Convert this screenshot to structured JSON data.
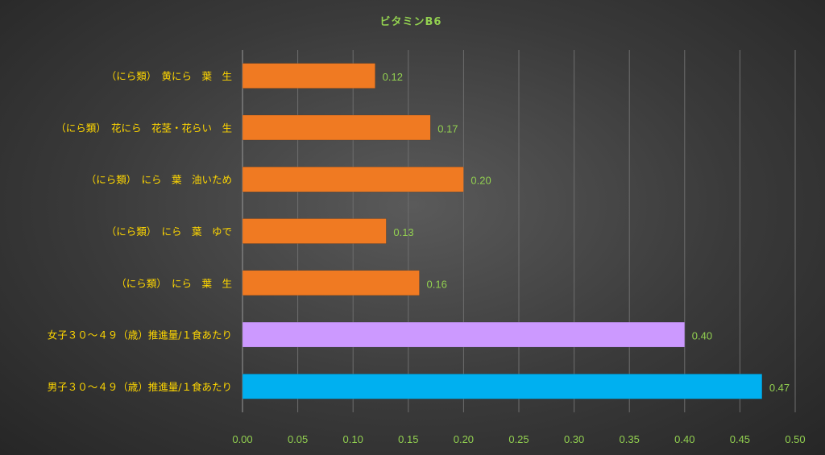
{
  "chart_data": {
    "type": "bar",
    "orientation": "horizontal",
    "title": "ビタミンB6",
    "categories": [
      "（にら類）　黄にら　葉　生",
      "（にら類）　花にら　花茎・花らい　生",
      "（にら類）　にら　葉　油いため",
      "（にら類）　にら　葉　ゆで",
      "（にら類）　にら　葉　生",
      "女子３０～４９（歳）推進量/１食あたり",
      "男子３０～４９（歳）推進量/１食あたり"
    ],
    "values": [
      0.12,
      0.17,
      0.2,
      0.13,
      0.16,
      0.4,
      0.47
    ],
    "data_labels": [
      "0.12",
      "0.17",
      "0.20",
      "0.13",
      "0.16",
      "0.40",
      "0.47"
    ],
    "bar_colors": [
      "#f07a22",
      "#f07a22",
      "#f07a22",
      "#f07a22",
      "#f07a22",
      "#cc99ff",
      "#00b0f0"
    ],
    "x_ticks": [
      "0.00",
      "0.05",
      "0.10",
      "0.15",
      "0.20",
      "0.25",
      "0.30",
      "0.35",
      "0.40",
      "0.45",
      "0.50"
    ],
    "xlim": [
      0,
      0.5
    ],
    "grid": "vertical",
    "legend": "none",
    "colors": {
      "title": "#92d050",
      "category_labels": "#ffd700",
      "tick_labels": "#92d050",
      "data_labels": "#92d050",
      "gridlines": "#6e6e6e"
    }
  }
}
